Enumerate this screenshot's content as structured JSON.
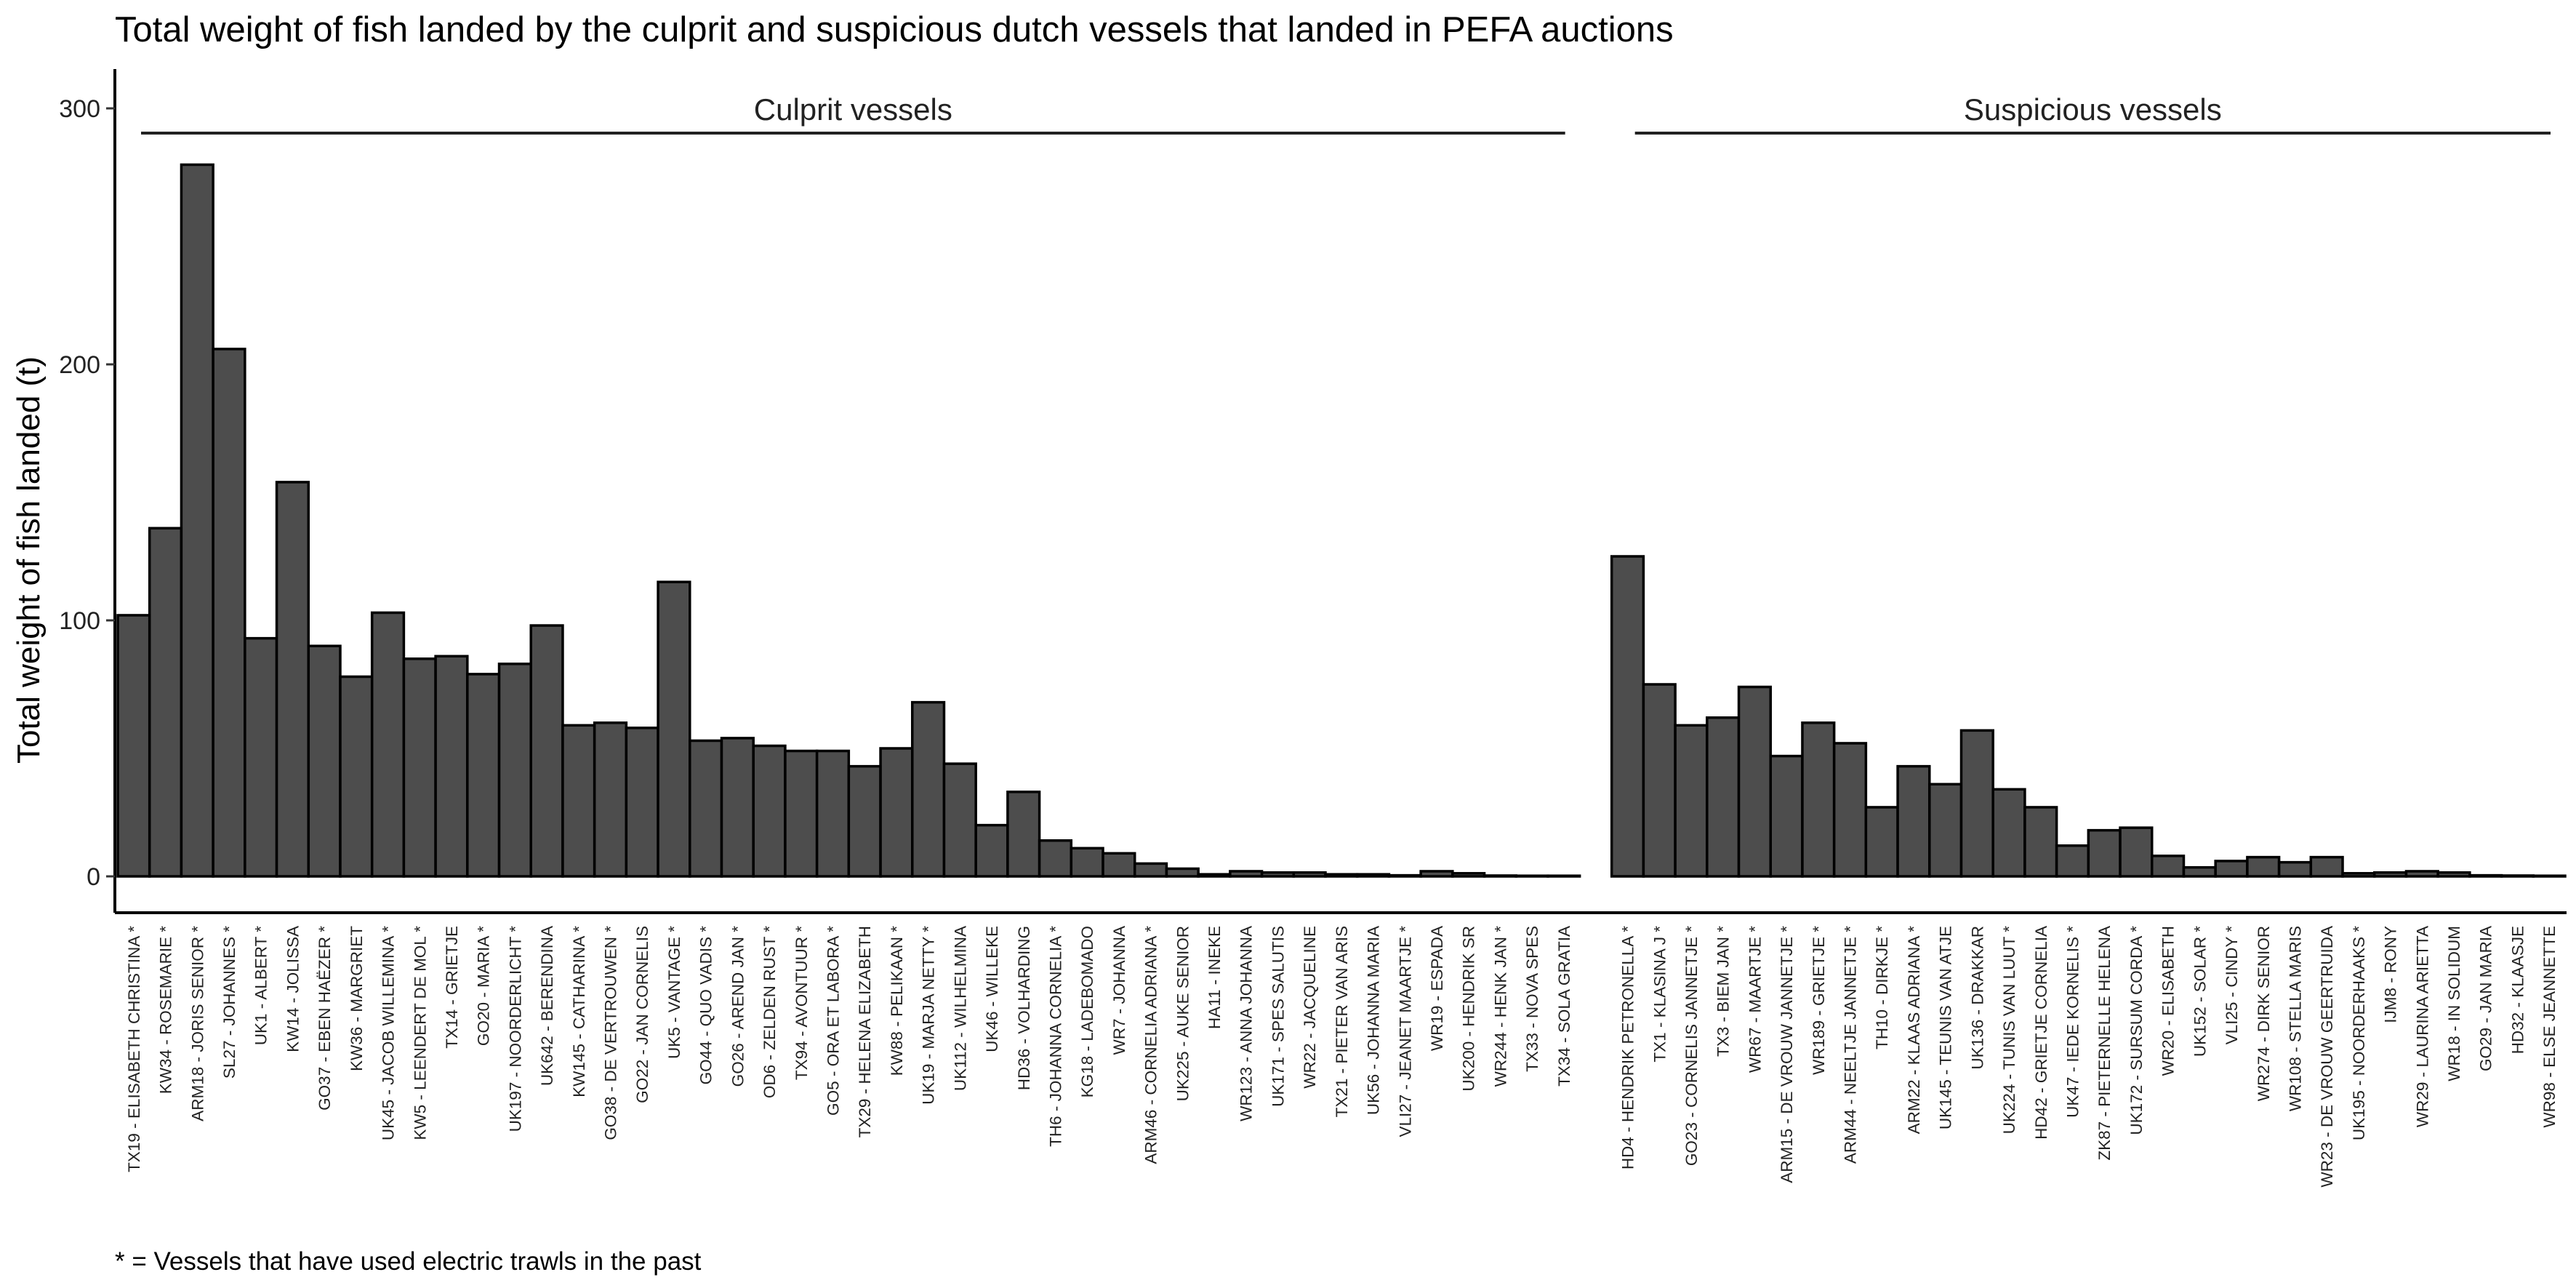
{
  "chart_data": {
    "type": "bar",
    "title": "Total weight of fish landed by the culprit and suspicious dutch vessels that landed in PEFA auctions",
    "ylabel": "Total weight of fish landed (t)",
    "xlabel": "",
    "caption": "* = Vessels that have used electric trawls in the past",
    "ylim": [
      -15,
      315
    ],
    "yticks": [
      0,
      100,
      200,
      300
    ],
    "grid": false,
    "legend": "none",
    "bar_color": "#4d4d4d",
    "bar_edge_color": "#000000",
    "groups": [
      {
        "name": "Culprit vessels",
        "categories": [
          "TX19 - ELISABETH CHRISTINA *",
          "KW34 - ROSEMARIE *",
          "ARM18 - JORIS SENIOR *",
          "SL27 - JOHANNES *",
          "UK1 - ALBERT *",
          "KW14 - JOLISSA",
          "GO37 - EBEN HAËZER *",
          "KW36 - MARGRIET",
          "UK45 - JACOB WILLEMINA *",
          "KW5 - LEENDERT DE MOL *",
          "TX14 - GRIETJE",
          "GO20 - MARIA *",
          "UK197 - NOORDERLICHT *",
          "UK642 - BERENDINA",
          "KW145 - CATHARINA *",
          "GO38 - DE VERTROUWEN *",
          "GO22 - JAN CORNELIS",
          "UK5 - VANTAGE *",
          "GO44 - QUO VADIS *",
          "GO26 - AREND JAN *",
          "OD6 - ZELDEN RUST *",
          "TX94 - AVONTUUR *",
          "GO5 - ORA ET LABORA *",
          "TX29 - HELENA ELIZABETH",
          "KW88 - PELIKAAN *",
          "UK19 - MARJA NETTY *",
          "UK112 - WILHELMINA",
          "UK46 - WILLEKE",
          "HD36 - VOLHARDING",
          "TH6 - JOHANNA CORNELIA *",
          "KG18 - LADEBOMADO",
          "WR7 - JOHANNA",
          "ARM46 - CORNELIA ADRIANA *",
          "UK225 - AUKE SENIOR",
          "HA11 - INEKE",
          "WR123 - ANNA JOHANNA",
          "UK171 - SPES SALUTIS",
          "WR22 - JACQUELINE",
          "TX21 - PIETER VAN ARIS",
          "UK56 - JOHANNA MARIA",
          "VLI27 - JEANET MAARTJE *",
          "WR19 - ESPADA",
          "UK200 - HENDRIK SR",
          "WR244 - HENK JAN *",
          "TX33 - NOVA SPES",
          "TX34 - SOLA GRATIA"
        ],
        "values": [
          102,
          136,
          278,
          206,
          93,
          154,
          90,
          78,
          103,
          85,
          86,
          79,
          83,
          98,
          59,
          60,
          58,
          115,
          53,
          54,
          51,
          49,
          49,
          43,
          50,
          68,
          44,
          20,
          33,
          14,
          11,
          9,
          5,
          3,
          0.8,
          2,
          1.5,
          1.5,
          0.8,
          0.8,
          0.4,
          2,
          1.2,
          0.3,
          0.1,
          0.1
        ]
      },
      {
        "name": "Suspicious vessels",
        "categories": [
          "HD4 - HENDRIK PETRONELLA *",
          "TX1 - KLASINA J *",
          "GO23 - CORNELIS JANNETJE *",
          "TX3 - BIEM JAN *",
          "WR67 - MAARTJE *",
          "ARM15 - DE VROUW JANNETJE *",
          "WR189 - GRIETJE *",
          "ARM44 - NEELTJE JANNETJE *",
          "TH10 - DIRKJE *",
          "ARM22 - KLAAS ADRIANA *",
          "UK145 - TEUNIS VAN ATJE",
          "UK136 - DRAKKAR",
          "UK224 - TUNIS VAN LUUT *",
          "HD42 - GRIETJE CORNELIA",
          "UK47 - IEDE KORNELIS *",
          "ZK87 - PIETERNELLE HELENA",
          "UK172 - SURSUM CORDA *",
          "WR20 - ELISABETH",
          "UK152 - SOLAR *",
          "VLI25 - CINDY *",
          "WR274 - DIRK SENIOR",
          "WR108 - STELLA MARIS",
          "WR23 - DE VROUW GEERTRUIDA",
          "UK195 - NOORDERHAAKS *",
          "IJM8 - RONY",
          "WR29 - LAURINA ARIETTA",
          "WR18 - IN SOLIDUM",
          "GO29 - JAN MARIA",
          "HD32 - KLAASJE",
          "WR98 - ELSE JEANNETTE"
        ],
        "values": [
          125,
          75,
          59,
          62,
          74,
          47,
          60,
          52,
          27,
          43,
          36,
          57,
          34,
          27,
          12,
          18,
          19,
          8,
          3.5,
          6,
          7.5,
          5.5,
          7.5,
          1.2,
          1.5,
          2,
          1.5,
          0.4,
          0.3,
          0.2
        ]
      }
    ]
  }
}
